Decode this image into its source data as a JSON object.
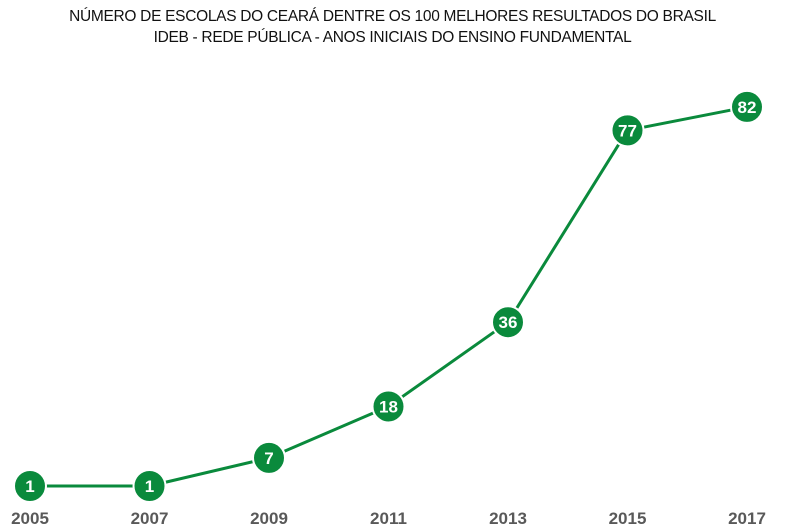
{
  "chart_data": {
    "type": "line",
    "title": "NÚMERO DE ESCOLAS DO CEARÁ DENTRE OS 100 MELHORES RESULTADOS DO BRASIL",
    "subtitle": "IDEB - REDE PÚBLICA - ANOS INICIAIS DO ENSINO FUNDAMENTAL",
    "xlabel": "",
    "ylabel": "",
    "categories": [
      "2005",
      "2007",
      "2009",
      "2011",
      "2013",
      "2015",
      "2017"
    ],
    "series": [
      {
        "values": [
          1,
          1,
          7,
          18,
          36,
          77,
          82
        ]
      }
    ],
    "ylim": [
      0,
      100
    ],
    "grid": false,
    "legend": "none",
    "data_labels": true
  },
  "colors": {
    "line": "#0a8a3c",
    "marker": "#0a8a3c",
    "marker_border": "#ffffff",
    "data_label": "#ffffff",
    "tick_label": "#595959",
    "title": "#111111"
  }
}
